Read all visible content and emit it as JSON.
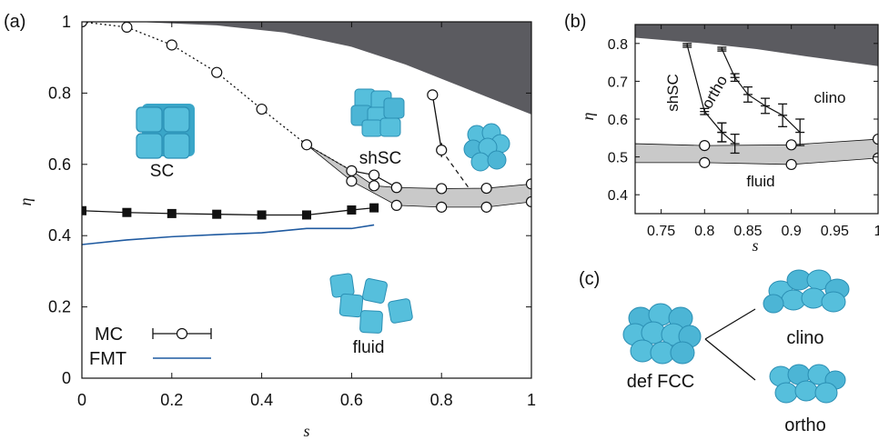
{
  "colors": {
    "solid_region": "#5b5b60",
    "coexist_band": "#c9c9c9",
    "fmt_line": "#1f5aa0",
    "cube_fill": "#56bfdc",
    "cube_edge": "#2b8fb4"
  },
  "icons": [
    "sc-cube-icon",
    "shsc-cube-icon",
    "fcc-sphere-cluster-icon",
    "fluid-cube-icon",
    "def-fcc-icon",
    "clino-icon",
    "ortho-icon"
  ],
  "chart_data": [
    {
      "panel": "(a)",
      "type": "line",
      "xlabel": "s",
      "ylabel": "η",
      "xlim": [
        0,
        1
      ],
      "ylim": [
        0,
        1
      ],
      "xticks": [
        "0",
        "0.2",
        "0.4",
        "0.6",
        "0.8",
        "1"
      ],
      "yticks": [
        "0",
        "0.2",
        "0.4",
        "0.6",
        "0.8",
        "1"
      ],
      "grid": false,
      "legend_position": "bottom-left",
      "legend": [
        "MC",
        "FMT"
      ],
      "region_labels": [
        "SC",
        "shSC",
        "fluid"
      ],
      "series": [
        {
          "name": "MC",
          "role": "sc-melting",
          "marker": "square",
          "x": [
            0.0,
            0.1,
            0.2,
            0.3,
            0.4,
            0.5,
            0.6,
            0.65
          ],
          "y": [
            0.47,
            0.465,
            0.462,
            0.46,
            0.458,
            0.458,
            0.472,
            0.478
          ]
        },
        {
          "name": "FMT",
          "role": "fmt",
          "x": [
            0.0,
            0.1,
            0.2,
            0.3,
            0.4,
            0.5,
            0.6,
            0.65
          ],
          "y": [
            0.375,
            0.388,
            0.397,
            0.403,
            0.408,
            0.42,
            0.42,
            0.43
          ]
        },
        {
          "role": "dotted-boundary",
          "marker": "circle",
          "x": [
            0.0,
            0.1,
            0.2,
            0.3,
            0.4,
            0.5,
            0.6
          ],
          "y": [
            1.0,
            0.985,
            0.935,
            0.858,
            0.755,
            0.655,
            0.582
          ]
        },
        {
          "role": "upper-coexistence",
          "marker": "circle",
          "x": [
            0.6,
            0.65,
            0.7,
            0.8,
            0.9,
            1.0
          ],
          "y": [
            0.553,
            0.54,
            0.535,
            0.532,
            0.533,
            0.545
          ]
        },
        {
          "role": "lower-coexistence",
          "marker": "circle",
          "x": [
            0.7,
            0.8,
            0.9,
            1.0
          ],
          "y": [
            0.485,
            0.48,
            0.48,
            0.495
          ]
        },
        {
          "role": "shsc-boundary",
          "marker": "circle",
          "x": [
            0.78,
            0.8
          ],
          "y": [
            0.795,
            0.64
          ],
          "yerr": [
            0,
            0.02
          ]
        },
        {
          "role": "dashed-boundary",
          "x": [
            0.8,
            0.86
          ],
          "y": [
            0.64,
            0.535
          ]
        },
        {
          "role": "extra-point",
          "marker": "circle",
          "x": [
            0.65
          ],
          "y": [
            0.57
          ]
        }
      ]
    },
    {
      "panel": "(b)",
      "type": "line",
      "xlabel": "s",
      "ylabel": "η",
      "xlim": [
        0.72,
        1.0
      ],
      "ylim": [
        0.35,
        0.85
      ],
      "xticks": [
        "0.75",
        "0.8",
        "0.85",
        "0.9",
        "0.95",
        "1"
      ],
      "yticks": [
        "0.4",
        "0.5",
        "0.6",
        "0.7",
        "0.8"
      ],
      "grid": false,
      "region_labels": [
        "shSC",
        "ortho",
        "clino",
        "fluid"
      ],
      "series": [
        {
          "role": "shsc-ortho-boundary",
          "marker": "errorbar",
          "x": [
            0.78,
            0.8,
            0.82
          ],
          "y": [
            0.795,
            0.62,
            0.565
          ],
          "yerr": [
            0.005,
            0.008,
            0.025
          ]
        },
        {
          "role": "ortho-clino-boundary",
          "marker": "errorbar",
          "x": [
            0.82,
            0.835,
            0.85,
            0.87,
            0.89,
            0.91
          ],
          "y": [
            0.785,
            0.71,
            0.665,
            0.635,
            0.61,
            0.565
          ],
          "yerr": [
            0.005,
            0.01,
            0.02,
            0.02,
            0.03,
            0.035
          ]
        },
        {
          "role": "left-branch",
          "marker": "errorbar",
          "x": [
            0.82,
            0.835
          ],
          "y": [
            0.565,
            0.535
          ],
          "yerr": [
            0.025,
            0.025
          ]
        },
        {
          "role": "upper-coexistence",
          "marker": "circle",
          "x": [
            0.8,
            0.9,
            1.0
          ],
          "y": [
            0.53,
            0.532,
            0.547
          ]
        },
        {
          "role": "lower-coexistence",
          "marker": "circle",
          "x": [
            0.8,
            0.9,
            1.0
          ],
          "y": [
            0.485,
            0.48,
            0.497
          ]
        }
      ]
    }
  ],
  "panel_c": {
    "label": "(c)",
    "parent": "def FCC",
    "children": [
      "clino",
      "ortho"
    ]
  }
}
